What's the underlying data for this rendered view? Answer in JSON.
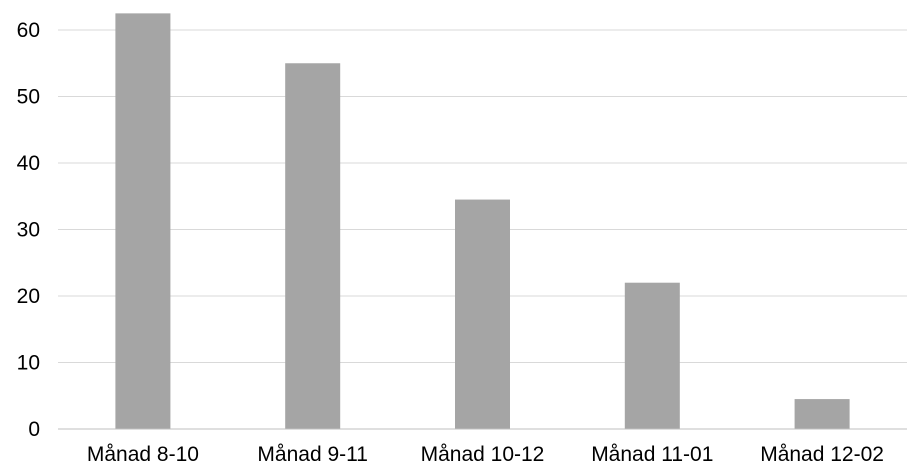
{
  "chart_data": {
    "type": "bar",
    "categories": [
      "Månad 8-10",
      "Månad 9-11",
      "Månad 10-12",
      "Månad 11-01",
      "Månad 12-02"
    ],
    "values": [
      62.5,
      55,
      34.5,
      22,
      4.5
    ],
    "title": "",
    "xlabel": "",
    "ylabel": "",
    "ylim": [
      0,
      60
    ],
    "yticks": [
      0,
      10,
      20,
      30,
      40,
      50,
      60
    ],
    "grid": true,
    "legend": "none",
    "colors": {
      "bar": "#a5a5a5",
      "grid": "#d9d9d9",
      "axis": "#bfbfbf",
      "text": "#000000"
    }
  }
}
